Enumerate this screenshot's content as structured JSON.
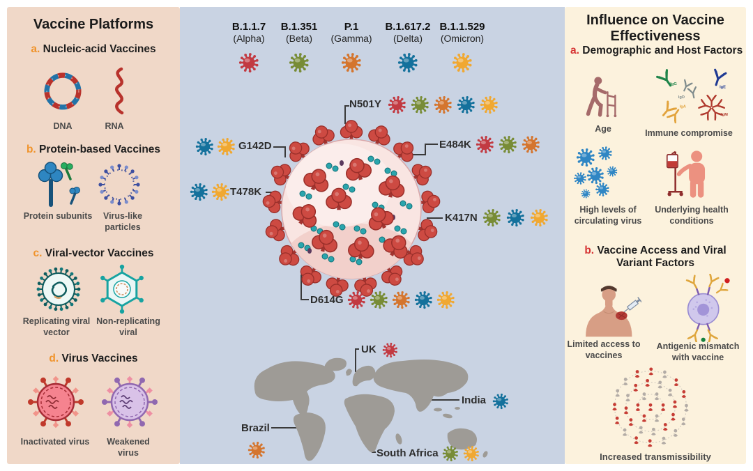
{
  "colors": {
    "panel_left_bg": "#f0d8c8",
    "panel_center_bg": "#c9d3e3",
    "panel_right_bg": "#fcf2dd",
    "left_section_letter": "#f0932b",
    "right_section_letter": "#d63333",
    "connector": "#3a3a3a",
    "map_land": "#9e9b96",
    "variants": {
      "alpha": "#c23a42",
      "beta": "#788c36",
      "gamma": "#d4752e",
      "delta": "#14719c",
      "omicron": "#f0a832"
    },
    "circulating_virus": "#2f86c4"
  },
  "left_panel": {
    "title": "Vaccine Platforms",
    "sections": [
      {
        "letter": "a.",
        "heading": "Nucleic-acid Vaccines",
        "items": [
          {
            "label": "DNA"
          },
          {
            "label": "RNA"
          }
        ]
      },
      {
        "letter": "b.",
        "heading": "Protein-based Vaccines",
        "items": [
          {
            "label": "Protein subunits"
          },
          {
            "label": "Virus-like particles"
          }
        ]
      },
      {
        "letter": "c.",
        "heading": "Viral-vector Vaccines",
        "items": [
          {
            "label": "Replicating viral vector"
          },
          {
            "label": "Non-replicating viral"
          }
        ]
      },
      {
        "letter": "d.",
        "heading": "Virus Vaccines",
        "items": [
          {
            "label": "Inactivated virus"
          },
          {
            "label": "Weakened virus"
          }
        ]
      }
    ]
  },
  "center_panel": {
    "variants": [
      {
        "lineage": "B.1.1.7",
        "greek": "(Alpha)",
        "key": "alpha"
      },
      {
        "lineage": "B.1.351",
        "greek": "(Beta)",
        "key": "beta"
      },
      {
        "lineage": "P.1",
        "greek": "(Gamma)",
        "key": "gamma"
      },
      {
        "lineage": "B.1.617.2",
        "greek": "(Delta)",
        "key": "delta"
      },
      {
        "lineage": "B.1.1.529",
        "greek": "(Omicron)",
        "key": "omicron"
      }
    ],
    "mutations": [
      {
        "label": "N501Y",
        "variants": [
          "alpha",
          "beta",
          "gamma",
          "delta",
          "omicron"
        ]
      },
      {
        "label": "G142D",
        "variants": [
          "delta",
          "omicron"
        ]
      },
      {
        "label": "T478K",
        "variants": [
          "delta",
          "omicron"
        ]
      },
      {
        "label": "E484K",
        "variants": [
          "alpha",
          "beta",
          "gamma"
        ]
      },
      {
        "label": "K417N",
        "variants": [
          "beta",
          "delta",
          "omicron"
        ]
      },
      {
        "label": "D614G",
        "variants": [
          "alpha",
          "beta",
          "gamma",
          "delta",
          "omicron"
        ]
      }
    ],
    "map_labels": [
      {
        "label": "UK",
        "variants": [
          "alpha"
        ]
      },
      {
        "label": "India",
        "variants": [
          "delta"
        ]
      },
      {
        "label": "Brazil",
        "variants": [
          "gamma"
        ]
      },
      {
        "label": "South Africa",
        "variants": [
          "beta",
          "omicron"
        ]
      }
    ]
  },
  "right_panel": {
    "title": "Influence on Vaccine Effectiveness",
    "sections": [
      {
        "letter": "a.",
        "heading": "Demographic and Host Factors",
        "items": [
          {
            "label": "Age"
          },
          {
            "label": "Immune compromise"
          },
          {
            "label": "High levels of circulating virus"
          },
          {
            "label": "Underlying health conditions"
          }
        ]
      },
      {
        "letter": "b.",
        "heading": "Vaccine Access and Viral Variant Factors",
        "items": [
          {
            "label": "Limited access to vaccines"
          },
          {
            "label": "Antigenic mismatch with vaccine"
          },
          {
            "label": "Increased transmissibility"
          }
        ]
      }
    ],
    "antibody_labels": [
      "IgG",
      "IgD",
      "IgE",
      "IgA",
      "IgM"
    ]
  }
}
